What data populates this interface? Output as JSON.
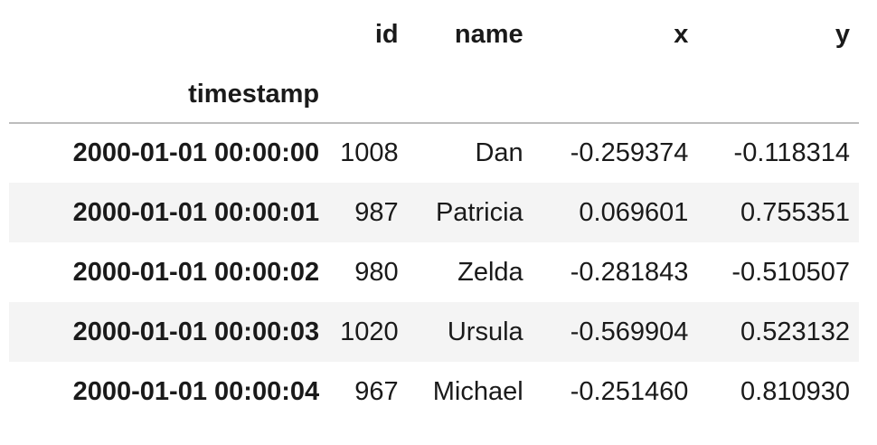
{
  "table": {
    "index_name": "timestamp",
    "columns": [
      "id",
      "name",
      "x",
      "y"
    ],
    "rows": [
      {
        "timestamp": "2000-01-01 00:00:00",
        "id": "1008",
        "name": "Dan",
        "x": "-0.259374",
        "y": "-0.118314"
      },
      {
        "timestamp": "2000-01-01 00:00:01",
        "id": "987",
        "name": "Patricia",
        "x": "0.069601",
        "y": "0.755351"
      },
      {
        "timestamp": "2000-01-01 00:00:02",
        "id": "980",
        "name": "Zelda",
        "x": "-0.281843",
        "y": "-0.510507"
      },
      {
        "timestamp": "2000-01-01 00:00:03",
        "id": "1020",
        "name": "Ursula",
        "x": "-0.569904",
        "y": "0.523132"
      },
      {
        "timestamp": "2000-01-01 00:00:04",
        "id": "967",
        "name": "Michael",
        "x": "-0.251460",
        "y": "0.810930"
      }
    ]
  }
}
